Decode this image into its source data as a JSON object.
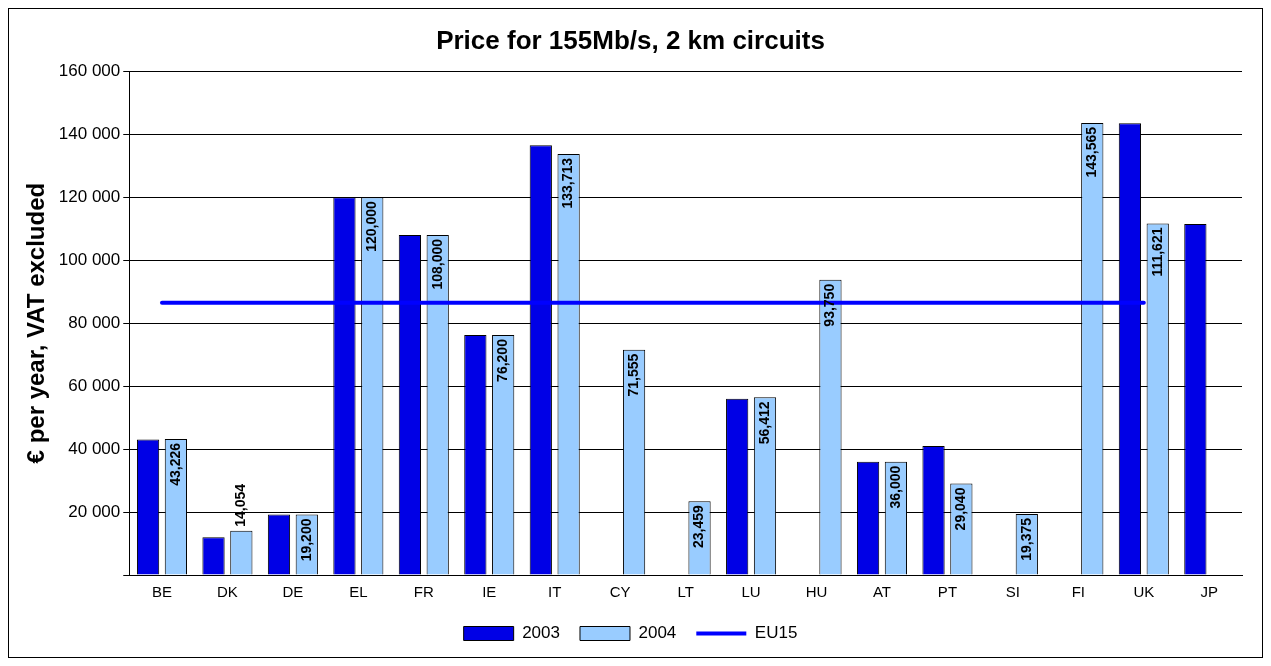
{
  "chart_data": {
    "type": "bar",
    "title": "Price for 155Mb/s, 2 km circuits",
    "ylabel": "€ per year, VAT excluded",
    "categories": [
      "BE",
      "DK",
      "DE",
      "EL",
      "FR",
      "IE",
      "IT",
      "CY",
      "LT",
      "LU",
      "HU",
      "AT",
      "PT",
      "SI",
      "FI",
      "UK",
      "JP"
    ],
    "series": [
      {
        "name": "2003",
        "color": "#0000e6",
        "values": [
          43000,
          12000,
          19200,
          120000,
          108000,
          76200,
          136500,
          null,
          null,
          56000,
          null,
          36000,
          41000,
          null,
          null,
          143500,
          111500
        ]
      },
      {
        "name": "2004",
        "color": "#99ccff",
        "values": [
          43226,
          14054,
          19200,
          120000,
          108000,
          76200,
          133713,
          71555,
          23459,
          56412,
          93750,
          36000,
          29040,
          19375,
          143565,
          111621,
          null
        ],
        "value_labels": [
          "43,226",
          "14,054",
          "19,200",
          "120,000",
          "108,000",
          "76,200",
          "133,713",
          "71,555",
          "23,459",
          "56,412",
          "93,750",
          "36,000",
          "29,040",
          "19,375",
          "143,565",
          "111,621",
          null
        ]
      },
      {
        "name": "EU15",
        "type": "line",
        "color": "#0000ff",
        "values": [
          86500,
          86500,
          86500,
          86500,
          86500,
          86500,
          86500,
          86500,
          86500,
          86500,
          86500,
          86500,
          86500,
          86500,
          86500,
          86500,
          null
        ]
      }
    ],
    "ylim": [
      0,
      160000
    ],
    "yticks": [
      {
        "value": 0,
        "label": null
      },
      {
        "value": 20000,
        "label": "20 000"
      },
      {
        "value": 40000,
        "label": "40 000"
      },
      {
        "value": 60000,
        "label": "60 000"
      },
      {
        "value": 80000,
        "label": "80 000"
      },
      {
        "value": 100000,
        "label": "100 000"
      },
      {
        "value": 120000,
        "label": "120 000"
      },
      {
        "value": 140000,
        "label": "140 000"
      },
      {
        "value": 160000,
        "label": "160 000"
      }
    ],
    "grid": "y",
    "legend": "bottom",
    "marker": "none",
    "line_style": "solid"
  }
}
